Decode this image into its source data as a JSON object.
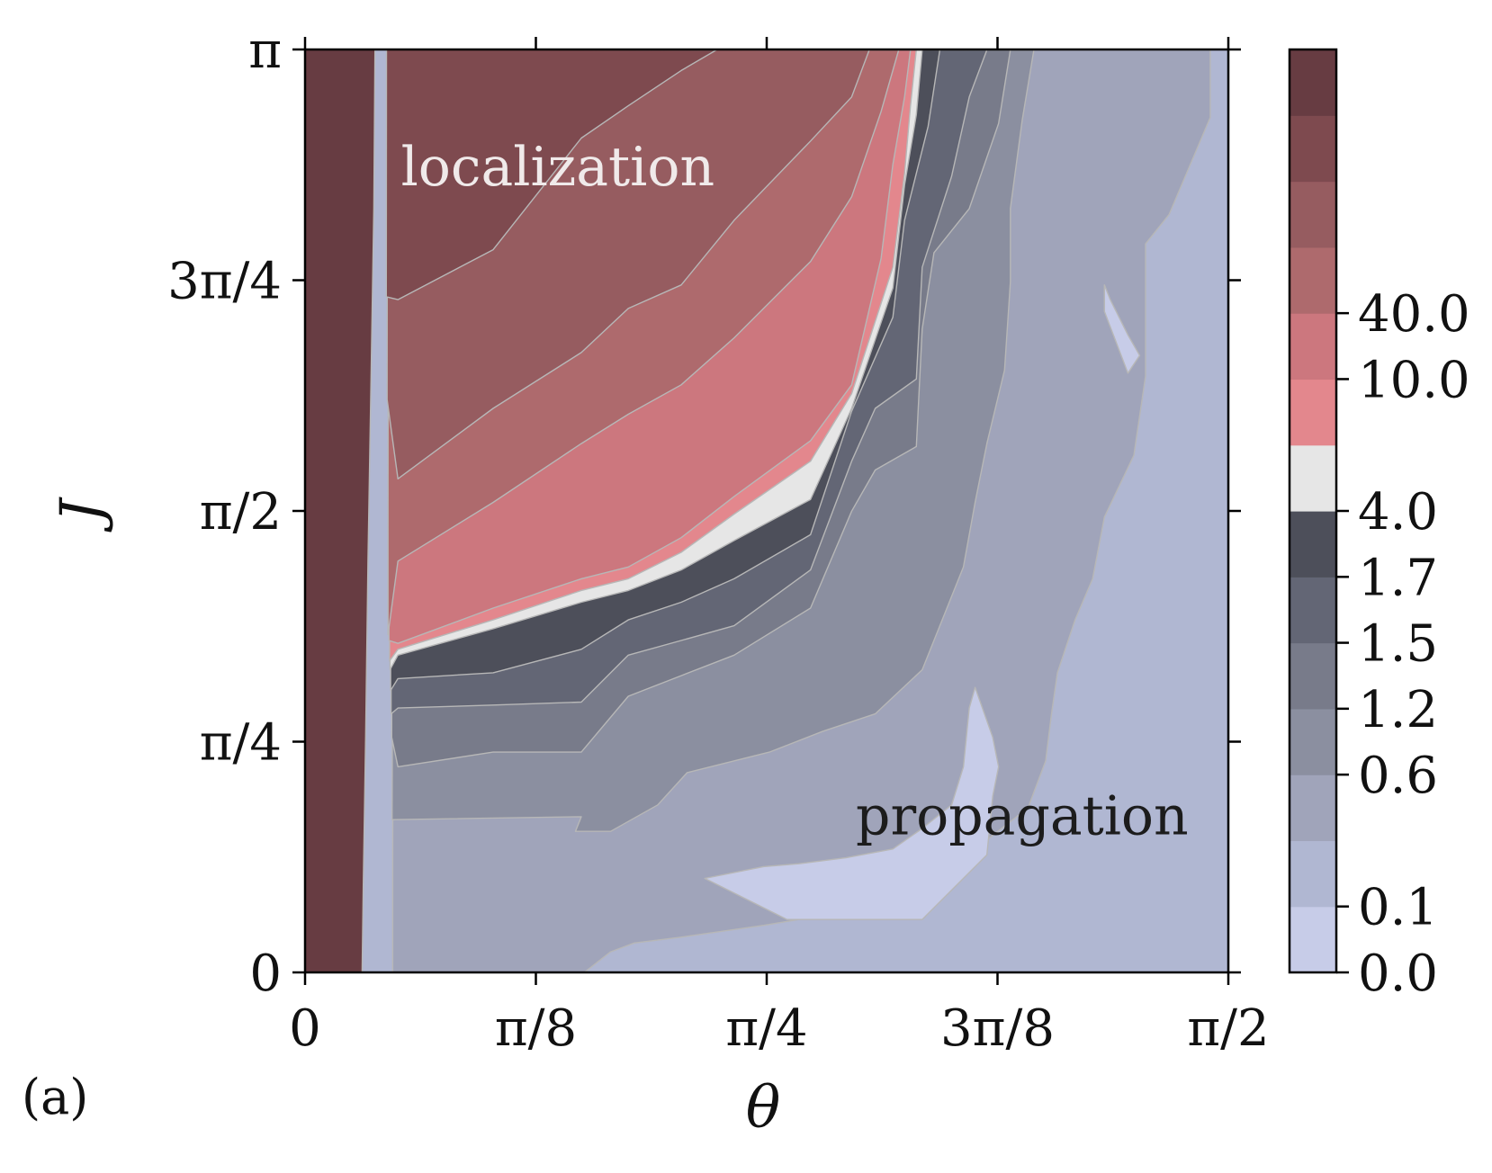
{
  "panel_label": "(a)",
  "chart_data": {
    "type": "heatmap",
    "subtype": "filled-contour",
    "xlabel": "θ",
    "ylabel": "J",
    "xlim": [
      0,
      1.5708
    ],
    "ylim": [
      0,
      3.1416
    ],
    "xticks": [
      {
        "value": 0,
        "label": "0"
      },
      {
        "value": 0.3927,
        "label": "π/8"
      },
      {
        "value": 0.7854,
        "label": "π/4"
      },
      {
        "value": 1.1781,
        "label": "3π/8"
      },
      {
        "value": 1.5708,
        "label": "π/2"
      }
    ],
    "yticks": [
      {
        "value": 0,
        "label": "0"
      },
      {
        "value": 0.7854,
        "label": "π/4"
      },
      {
        "value": 1.5708,
        "label": "π/2"
      },
      {
        "value": 2.3562,
        "label": "3π/4"
      },
      {
        "value": 3.1416,
        "label": "π"
      }
    ],
    "colorbar": {
      "levels": [
        0.0,
        0.1,
        0.6,
        1.2,
        1.5,
        1.7,
        4.0,
        10.0,
        40.0
      ],
      "tick_labels": [
        "0.0",
        "0.1",
        "0.6",
        "1.2",
        "1.5",
        "1.7",
        "4.0",
        "10.0",
        "40.0"
      ],
      "band_colors": [
        "#c7cce8",
        "#b0b7d2",
        "#a0a4ba",
        "#8b8fa0",
        "#787b8a",
        "#636675",
        "#4d4f5a",
        "#e6e6e6",
        "#e3878d",
        "#cc777e",
        "#ae6a6d",
        "#965c60",
        "#7e4a4f",
        "#673c42"
      ],
      "tick_band_index": [
        0,
        2,
        6,
        8,
        10,
        12,
        14,
        18,
        20
      ]
    },
    "annotations": [
      {
        "text": "localization",
        "x": 0.43,
        "y": 2.68,
        "color": "#f0eaea"
      },
      {
        "text": "propagation",
        "x": 1.22,
        "y": 0.47,
        "color": "#1c1c1c"
      }
    ],
    "contour_regions": [
      {
        "band": 1,
        "points": [
          [
            0,
            0
          ],
          [
            1.5708,
            0
          ],
          [
            1.5708,
            3.1416
          ],
          [
            0,
            3.1416
          ]
        ]
      },
      {
        "band": 2,
        "points": [
          [
            0.1519,
            3.1416
          ],
          [
            0.1513,
            2.97
          ],
          [
            0.151,
            2.6
          ],
          [
            0.1506,
            2.2
          ],
          [
            0.1502,
            1.8
          ],
          [
            0.1498,
            1.4
          ],
          [
            0.1495,
            1.0
          ],
          [
            0.1492,
            0.62
          ],
          [
            0.1491,
            0.33
          ],
          [
            0.1491,
            0.0
          ],
          [
            0.475,
            0.0
          ],
          [
            0.52,
            0.07
          ],
          [
            0.56,
            0.1
          ],
          [
            0.64,
            0.12
          ],
          [
            0.78,
            0.16
          ],
          [
            0.9,
            0.2
          ],
          [
            0.95,
            0.23
          ],
          [
            1.06,
            0.3
          ],
          [
            1.14,
            0.42
          ],
          [
            1.23,
            0.56
          ],
          [
            1.26,
            0.72
          ],
          [
            1.27,
            0.88
          ],
          [
            1.28,
            1.02
          ],
          [
            1.31,
            1.2
          ],
          [
            1.34,
            1.34
          ],
          [
            1.36,
            1.55
          ],
          [
            1.41,
            1.76
          ],
          [
            1.43,
            2.03
          ],
          [
            1.43,
            2.35
          ],
          [
            1.43,
            2.48
          ],
          [
            1.47,
            2.58
          ],
          [
            1.54,
            2.91
          ],
          [
            1.54,
            3.14
          ]
        ]
      },
      {
        "band": 0,
        "points": [
          [
            0.68,
            0.32
          ],
          [
            0.78,
            0.36
          ],
          [
            0.84,
            0.37
          ],
          [
            0.92,
            0.39
          ],
          [
            1.0,
            0.42
          ],
          [
            1.05,
            0.49
          ],
          [
            1.1,
            0.57
          ],
          [
            1.12,
            0.7
          ],
          [
            1.13,
            0.9
          ],
          [
            1.14,
            0.97
          ],
          [
            1.17,
            0.8
          ],
          [
            1.18,
            0.7
          ],
          [
            1.17,
            0.6
          ],
          [
            1.16,
            0.4
          ],
          [
            1.05,
            0.18
          ],
          [
            0.82,
            0.18
          ]
        ]
      },
      {
        "band": 0,
        "points": [
          [
            1.4,
            2.04
          ],
          [
            1.42,
            2.1
          ],
          [
            1.4,
            2.17
          ],
          [
            1.37,
            2.29
          ],
          [
            1.36,
            2.34
          ],
          [
            1.36,
            2.25
          ]
        ]
      },
      {
        "band": 3,
        "points": [
          [
            0.1501,
            3.1416
          ],
          [
            0.1498,
            2.7
          ],
          [
            0.1495,
            2.3
          ],
          [
            0.1492,
            1.9
          ],
          [
            0.1489,
            1.5
          ],
          [
            0.1486,
            1.1
          ],
          [
            0.1483,
            0.7
          ],
          [
            0.148,
            0.52
          ],
          [
            0.47,
            0.53
          ],
          [
            0.46,
            0.48
          ],
          [
            0.52,
            0.48
          ],
          [
            0.6,
            0.57
          ],
          [
            0.65,
            0.68
          ],
          [
            0.79,
            0.75
          ],
          [
            0.88,
            0.82
          ],
          [
            0.97,
            0.88
          ],
          [
            1.05,
            1.03
          ],
          [
            1.12,
            1.38
          ],
          [
            1.14,
            1.6
          ],
          [
            1.16,
            1.8
          ],
          [
            1.19,
            2.05
          ],
          [
            1.2,
            2.35
          ],
          [
            1.2,
            2.6
          ],
          [
            1.22,
            2.9
          ],
          [
            1.24,
            3.14
          ]
        ]
      },
      {
        "band": 4,
        "points": [
          [
            0.1486,
            3.1416
          ],
          [
            0.1484,
            2.7
          ],
          [
            0.1482,
            2.3
          ],
          [
            0.148,
            1.9
          ],
          [
            0.1478,
            1.5
          ],
          [
            0.1476,
            1.1
          ],
          [
            0.1474,
            0.8
          ],
          [
            0.158,
            0.7
          ],
          [
            0.32,
            0.75
          ],
          [
            0.47,
            0.75
          ],
          [
            0.55,
            0.94
          ],
          [
            0.64,
            1.01
          ],
          [
            0.73,
            1.08
          ],
          [
            0.86,
            1.24
          ],
          [
            0.93,
            1.57
          ],
          [
            0.97,
            1.71
          ],
          [
            1.04,
            1.79
          ],
          [
            1.05,
            2.19
          ],
          [
            1.07,
            2.45
          ],
          [
            1.13,
            2.6
          ],
          [
            1.18,
            2.89
          ],
          [
            1.2,
            3.14
          ]
        ]
      },
      {
        "band": 5,
        "points": [
          [
            0.1472,
            3.1416
          ],
          [
            0.1471,
            2.7
          ],
          [
            0.1469,
            2.3
          ],
          [
            0.1467,
            1.9
          ],
          [
            0.1465,
            1.5
          ],
          [
            0.1464,
            1.1
          ],
          [
            0.1463,
            0.88
          ],
          [
            0.158,
            0.9
          ],
          [
            0.32,
            0.91
          ],
          [
            0.47,
            0.92
          ],
          [
            0.55,
            1.08
          ],
          [
            0.64,
            1.13
          ],
          [
            0.73,
            1.18
          ],
          [
            0.86,
            1.37
          ],
          [
            0.93,
            1.74
          ],
          [
            0.97,
            1.92
          ],
          [
            1.04,
            2.02
          ],
          [
            1.05,
            2.4
          ],
          [
            1.1,
            2.71
          ],
          [
            1.13,
            2.98
          ],
          [
            1.16,
            3.14
          ]
        ]
      },
      {
        "band": 6,
        "points": [
          [
            0.1461,
            3.1416
          ],
          [
            0.146,
            2.7
          ],
          [
            0.1459,
            2.3
          ],
          [
            0.1458,
            1.9
          ],
          [
            0.1457,
            1.5
          ],
          [
            0.1456,
            1.1
          ],
          [
            0.1456,
            0.96
          ],
          [
            0.158,
            1.0
          ],
          [
            0.32,
            1.02
          ],
          [
            0.47,
            1.1
          ],
          [
            0.55,
            1.2
          ],
          [
            0.64,
            1.26
          ],
          [
            0.73,
            1.34
          ],
          [
            0.86,
            1.49
          ],
          [
            0.93,
            1.91
          ],
          [
            1.0,
            2.23
          ],
          [
            1.02,
            2.56
          ],
          [
            1.06,
            2.88
          ],
          [
            1.08,
            3.14
          ]
        ]
      },
      {
        "band": 7,
        "points": [
          [
            0.1452,
            3.1416
          ],
          [
            0.1451,
            2.7
          ],
          [
            0.145,
            2.3
          ],
          [
            0.1449,
            1.9
          ],
          [
            0.1448,
            1.5
          ],
          [
            0.1447,
            1.1
          ],
          [
            0.1446,
            1.03
          ],
          [
            0.158,
            1.08
          ],
          [
            0.32,
            1.17
          ],
          [
            0.47,
            1.26
          ],
          [
            0.55,
            1.3
          ],
          [
            0.64,
            1.37
          ],
          [
            0.73,
            1.47
          ],
          [
            0.86,
            1.61
          ],
          [
            0.93,
            1.92
          ],
          [
            1.0,
            2.33
          ],
          [
            1.02,
            2.68
          ],
          [
            1.04,
            2.92
          ],
          [
            1.05,
            3.14
          ]
        ]
      },
      {
        "band": 8,
        "points": [
          [
            0.1442,
            3.1416
          ],
          [
            0.1441,
            2.7
          ],
          [
            0.144,
            2.3
          ],
          [
            0.1439,
            1.9
          ],
          [
            0.1438,
            1.5
          ],
          [
            0.1437,
            1.1
          ],
          [
            0.1436,
            1.06
          ],
          [
            0.158,
            1.1
          ],
          [
            0.32,
            1.2
          ],
          [
            0.47,
            1.3
          ],
          [
            0.55,
            1.34
          ],
          [
            0.64,
            1.43
          ],
          [
            0.73,
            1.56
          ],
          [
            0.86,
            1.74
          ],
          [
            0.93,
            1.97
          ],
          [
            1.0,
            2.4
          ],
          [
            1.02,
            2.72
          ],
          [
            1.03,
            2.95
          ],
          [
            1.04,
            3.14
          ]
        ]
      },
      {
        "band": 9,
        "points": [
          [
            0.1432,
            3.1416
          ],
          [
            0.1431,
            2.7
          ],
          [
            0.143,
            2.3
          ],
          [
            0.1429,
            1.9
          ],
          [
            0.1428,
            1.5
          ],
          [
            0.1427,
            1.13
          ],
          [
            0.158,
            1.12
          ],
          [
            0.32,
            1.24
          ],
          [
            0.47,
            1.34
          ],
          [
            0.55,
            1.38
          ],
          [
            0.64,
            1.48
          ],
          [
            0.73,
            1.62
          ],
          [
            0.86,
            1.81
          ],
          [
            0.93,
            2.0
          ],
          [
            0.98,
            2.43
          ],
          [
            1.0,
            2.75
          ],
          [
            1.02,
            2.98
          ],
          [
            1.03,
            3.14
          ]
        ]
      },
      {
        "band": 10,
        "points": [
          [
            0.1416,
            3.1416
          ],
          [
            0.1415,
            2.7
          ],
          [
            0.1414,
            2.3
          ],
          [
            0.1413,
            1.9
          ],
          [
            0.1412,
            1.5
          ],
          [
            0.1411,
            1.15
          ],
          [
            0.158,
            1.4
          ],
          [
            0.32,
            1.6
          ],
          [
            0.47,
            1.8
          ],
          [
            0.55,
            1.9
          ],
          [
            0.64,
            2.0
          ],
          [
            0.73,
            2.16
          ],
          [
            0.86,
            2.42
          ],
          [
            0.93,
            2.64
          ],
          [
            0.98,
            2.93
          ],
          [
            1.01,
            3.14
          ]
        ]
      },
      {
        "band": 11,
        "points": [
          [
            0.14,
            3.1416
          ],
          [
            0.1399,
            2.7
          ],
          [
            0.1398,
            2.3
          ],
          [
            0.1397,
            1.95
          ],
          [
            0.158,
            1.68
          ],
          [
            0.32,
            1.92
          ],
          [
            0.47,
            2.11
          ],
          [
            0.55,
            2.26
          ],
          [
            0.64,
            2.34
          ],
          [
            0.73,
            2.56
          ],
          [
            0.86,
            2.83
          ],
          [
            0.93,
            2.98
          ],
          [
            0.96,
            3.14
          ]
        ]
      },
      {
        "band": 12,
        "points": [
          [
            0.1385,
            3.1416
          ],
          [
            0.1384,
            2.7
          ],
          [
            0.1383,
            2.3
          ],
          [
            0.158,
            2.29
          ],
          [
            0.32,
            2.46
          ],
          [
            0.47,
            2.84
          ],
          [
            0.55,
            2.95
          ],
          [
            0.64,
            3.07
          ],
          [
            0.7,
            3.14
          ]
        ]
      },
      {
        "band": 13,
        "points": [
          [
            0.0,
            3.1416
          ],
          [
            0.119,
            3.1416
          ],
          [
            0.117,
            2.6
          ],
          [
            0.112,
            2.0
          ],
          [
            0.107,
            1.4
          ],
          [
            0.103,
            0.8
          ],
          [
            0.099,
            0.3
          ],
          [
            0.097,
            0.0
          ],
          [
            0.0,
            0.0
          ]
        ]
      }
    ]
  }
}
